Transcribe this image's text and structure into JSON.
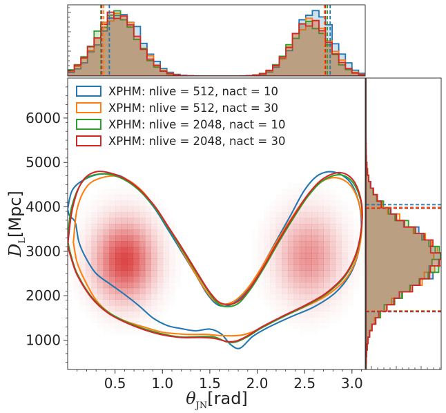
{
  "chart_data": {
    "type": "corner-plot",
    "xlabel_symbol": "θ",
    "xlabel_sub": "JN",
    "xlabel_unit": "[rad]",
    "ylabel_symbol": "D",
    "ylabel_sub": "L",
    "ylabel_unit": "[Mpc]",
    "xlim": [
      0.0,
      3.14
    ],
    "ylim": [
      340,
      6900
    ],
    "xticks": [
      0.5,
      1.0,
      1.5,
      2.0,
      2.5,
      3.0
    ],
    "xtick_labels": [
      "0.5",
      "1.0",
      "1.5",
      "2.0",
      "2.5",
      "3.0"
    ],
    "yticks": [
      1000,
      2000,
      3000,
      4000,
      5000,
      6000
    ],
    "ytick_labels": [
      "1000",
      "2000",
      "3000",
      "4000",
      "5000",
      "6000"
    ],
    "legend_position": "top-left",
    "series": [
      {
        "name": "XPHM: nlive = 512, nact = 10",
        "color": "#1f77b4",
        "theta_interval": [
          0.44,
          2.77
        ],
        "dl_interval": [
          1640,
          4050
        ]
      },
      {
        "name": "XPHM: nlive = 512, nact = 30",
        "color": "#ff7f0e",
        "theta_interval": [
          0.38,
          2.71
        ],
        "dl_interval": [
          1660,
          3990
        ]
      },
      {
        "name": "XPHM: nlive = 2048, nact = 10",
        "color": "#2ca02c",
        "theta_interval": [
          0.35,
          2.74
        ],
        "dl_interval": [
          1650,
          3970
        ]
      },
      {
        "name": "XPHM: nlive = 2048, nact = 30",
        "color": "#d62728",
        "theta_interval": [
          0.36,
          2.72
        ],
        "dl_interval": [
          1650,
          3970
        ]
      }
    ],
    "contours": [
      {
        "name": "XPHM: nlive = 512, nact = 10",
        "points": [
          [
            0.0,
            3950
          ],
          [
            0.05,
            4380
          ],
          [
            0.18,
            4620
          ],
          [
            0.35,
            4740
          ],
          [
            0.55,
            4700
          ],
          [
            0.72,
            4450
          ],
          [
            0.9,
            4020
          ],
          [
            1.05,
            3520
          ],
          [
            1.2,
            3000
          ],
          [
            1.35,
            2480
          ],
          [
            1.48,
            2020
          ],
          [
            1.6,
            1780
          ],
          [
            1.75,
            1830
          ],
          [
            1.9,
            2150
          ],
          [
            2.05,
            2650
          ],
          [
            2.2,
            3230
          ],
          [
            2.35,
            3800
          ],
          [
            2.5,
            4380
          ],
          [
            2.65,
            4720
          ],
          [
            2.82,
            4780
          ],
          [
            2.98,
            4560
          ],
          [
            3.07,
            4120
          ],
          [
            3.1,
            3600
          ],
          [
            3.07,
            3000
          ],
          [
            2.98,
            2480
          ],
          [
            2.82,
            2060
          ],
          [
            2.6,
            1750
          ],
          [
            2.35,
            1520
          ],
          [
            2.1,
            1270
          ],
          [
            1.95,
            1080
          ],
          [
            1.82,
            820
          ],
          [
            1.72,
            900
          ],
          [
            1.62,
            1140
          ],
          [
            1.5,
            1250
          ],
          [
            1.35,
            1210
          ],
          [
            1.2,
            1260
          ],
          [
            1.05,
            1330
          ],
          [
            0.9,
            1500
          ],
          [
            0.75,
            1780
          ],
          [
            0.6,
            2030
          ],
          [
            0.45,
            2260
          ],
          [
            0.3,
            2500
          ],
          [
            0.2,
            2820
          ],
          [
            0.12,
            3200
          ],
          [
            0.08,
            3650
          ],
          [
            0.02,
            3800
          ],
          [
            0.0,
            3950
          ]
        ]
      },
      {
        "name": "XPHM: nlive = 512, nact = 30",
        "points": [
          [
            0.06,
            3200
          ],
          [
            0.1,
            3950
          ],
          [
            0.2,
            4450
          ],
          [
            0.35,
            4650
          ],
          [
            0.55,
            4680
          ],
          [
            0.75,
            4430
          ],
          [
            0.92,
            4000
          ],
          [
            1.08,
            3480
          ],
          [
            1.22,
            2960
          ],
          [
            1.36,
            2450
          ],
          [
            1.48,
            2050
          ],
          [
            1.6,
            1820
          ],
          [
            1.75,
            1870
          ],
          [
            1.9,
            2170
          ],
          [
            2.05,
            2650
          ],
          [
            2.2,
            3200
          ],
          [
            2.36,
            3740
          ],
          [
            2.52,
            4230
          ],
          [
            2.68,
            4570
          ],
          [
            2.85,
            4650
          ],
          [
            3.0,
            4440
          ],
          [
            3.09,
            3950
          ],
          [
            3.1,
            3400
          ],
          [
            3.04,
            2800
          ],
          [
            2.92,
            2340
          ],
          [
            2.72,
            1990
          ],
          [
            2.5,
            1750
          ],
          [
            2.25,
            1510
          ],
          [
            2.05,
            1280
          ],
          [
            1.85,
            1120
          ],
          [
            1.65,
            1100
          ],
          [
            1.45,
            1130
          ],
          [
            1.25,
            1130
          ],
          [
            1.0,
            1180
          ],
          [
            0.8,
            1300
          ],
          [
            0.62,
            1420
          ],
          [
            0.45,
            1600
          ],
          [
            0.3,
            1900
          ],
          [
            0.18,
            2350
          ],
          [
            0.1,
            2750
          ],
          [
            0.06,
            3200
          ]
        ]
      },
      {
        "name": "XPHM: nlive = 2048, nact = 10",
        "points": [
          [
            0.0,
            3250
          ],
          [
            0.04,
            3980
          ],
          [
            0.15,
            4550
          ],
          [
            0.3,
            4730
          ],
          [
            0.5,
            4700
          ],
          [
            0.7,
            4470
          ],
          [
            0.9,
            4040
          ],
          [
            1.06,
            3530
          ],
          [
            1.22,
            3000
          ],
          [
            1.37,
            2480
          ],
          [
            1.5,
            2050
          ],
          [
            1.62,
            1780
          ],
          [
            1.78,
            1800
          ],
          [
            1.92,
            2120
          ],
          [
            2.07,
            2620
          ],
          [
            2.22,
            3180
          ],
          [
            2.38,
            3740
          ],
          [
            2.54,
            4250
          ],
          [
            2.7,
            4600
          ],
          [
            2.88,
            4720
          ],
          [
            3.02,
            4520
          ],
          [
            3.1,
            4050
          ],
          [
            3.1,
            3500
          ],
          [
            3.04,
            2900
          ],
          [
            2.92,
            2420
          ],
          [
            2.72,
            2030
          ],
          [
            2.5,
            1760
          ],
          [
            2.25,
            1500
          ],
          [
            2.05,
            1280
          ],
          [
            1.9,
            1080
          ],
          [
            1.78,
            960
          ],
          [
            1.68,
            960
          ],
          [
            1.55,
            1070
          ],
          [
            1.4,
            1080
          ],
          [
            1.2,
            1070
          ],
          [
            1.0,
            1140
          ],
          [
            0.8,
            1260
          ],
          [
            0.6,
            1430
          ],
          [
            0.42,
            1640
          ],
          [
            0.25,
            1980
          ],
          [
            0.1,
            2500
          ],
          [
            0.03,
            2950
          ],
          [
            0.0,
            3250
          ]
        ]
      },
      {
        "name": "XPHM: nlive = 2048, nact = 30",
        "points": [
          [
            0.0,
            3130
          ],
          [
            0.05,
            3960
          ],
          [
            0.15,
            4560
          ],
          [
            0.3,
            4790
          ],
          [
            0.5,
            4730
          ],
          [
            0.7,
            4500
          ],
          [
            0.9,
            4070
          ],
          [
            1.06,
            3560
          ],
          [
            1.22,
            3030
          ],
          [
            1.37,
            2510
          ],
          [
            1.5,
            2080
          ],
          [
            1.62,
            1830
          ],
          [
            1.78,
            1850
          ],
          [
            1.92,
            2160
          ],
          [
            2.07,
            2660
          ],
          [
            2.22,
            3220
          ],
          [
            2.38,
            3780
          ],
          [
            2.54,
            4290
          ],
          [
            2.7,
            4640
          ],
          [
            2.88,
            4770
          ],
          [
            3.02,
            4580
          ],
          [
            3.1,
            4100
          ],
          [
            3.1,
            3530
          ],
          [
            3.04,
            2930
          ],
          [
            2.92,
            2450
          ],
          [
            2.72,
            2050
          ],
          [
            2.5,
            1780
          ],
          [
            2.25,
            1520
          ],
          [
            2.05,
            1300
          ],
          [
            1.9,
            1100
          ],
          [
            1.78,
            980
          ],
          [
            1.68,
            970
          ],
          [
            1.55,
            1040
          ],
          [
            1.4,
            1060
          ],
          [
            1.2,
            1060
          ],
          [
            1.0,
            1120
          ],
          [
            0.8,
            1240
          ],
          [
            0.6,
            1410
          ],
          [
            0.42,
            1620
          ],
          [
            0.25,
            1960
          ],
          [
            0.1,
            2470
          ],
          [
            0.03,
            2900
          ],
          [
            0.0,
            3130
          ]
        ]
      }
    ],
    "density_peaks": [
      {
        "theta": 0.6,
        "dl": 2800,
        "sigma_theta": 0.2,
        "sigma_dl": 560,
        "weight": 1.0
      },
      {
        "theta": 2.54,
        "dl": 2880,
        "sigma_theta": 0.21,
        "sigma_dl": 600,
        "weight": 0.55
      }
    ]
  },
  "legend": {
    "entries": [
      "XPHM: nlive = 512, nact = 10",
      "XPHM: nlive = 512, nact = 30",
      "XPHM: nlive = 2048, nact = 10",
      "XPHM: nlive = 2048, nact = 30"
    ]
  }
}
